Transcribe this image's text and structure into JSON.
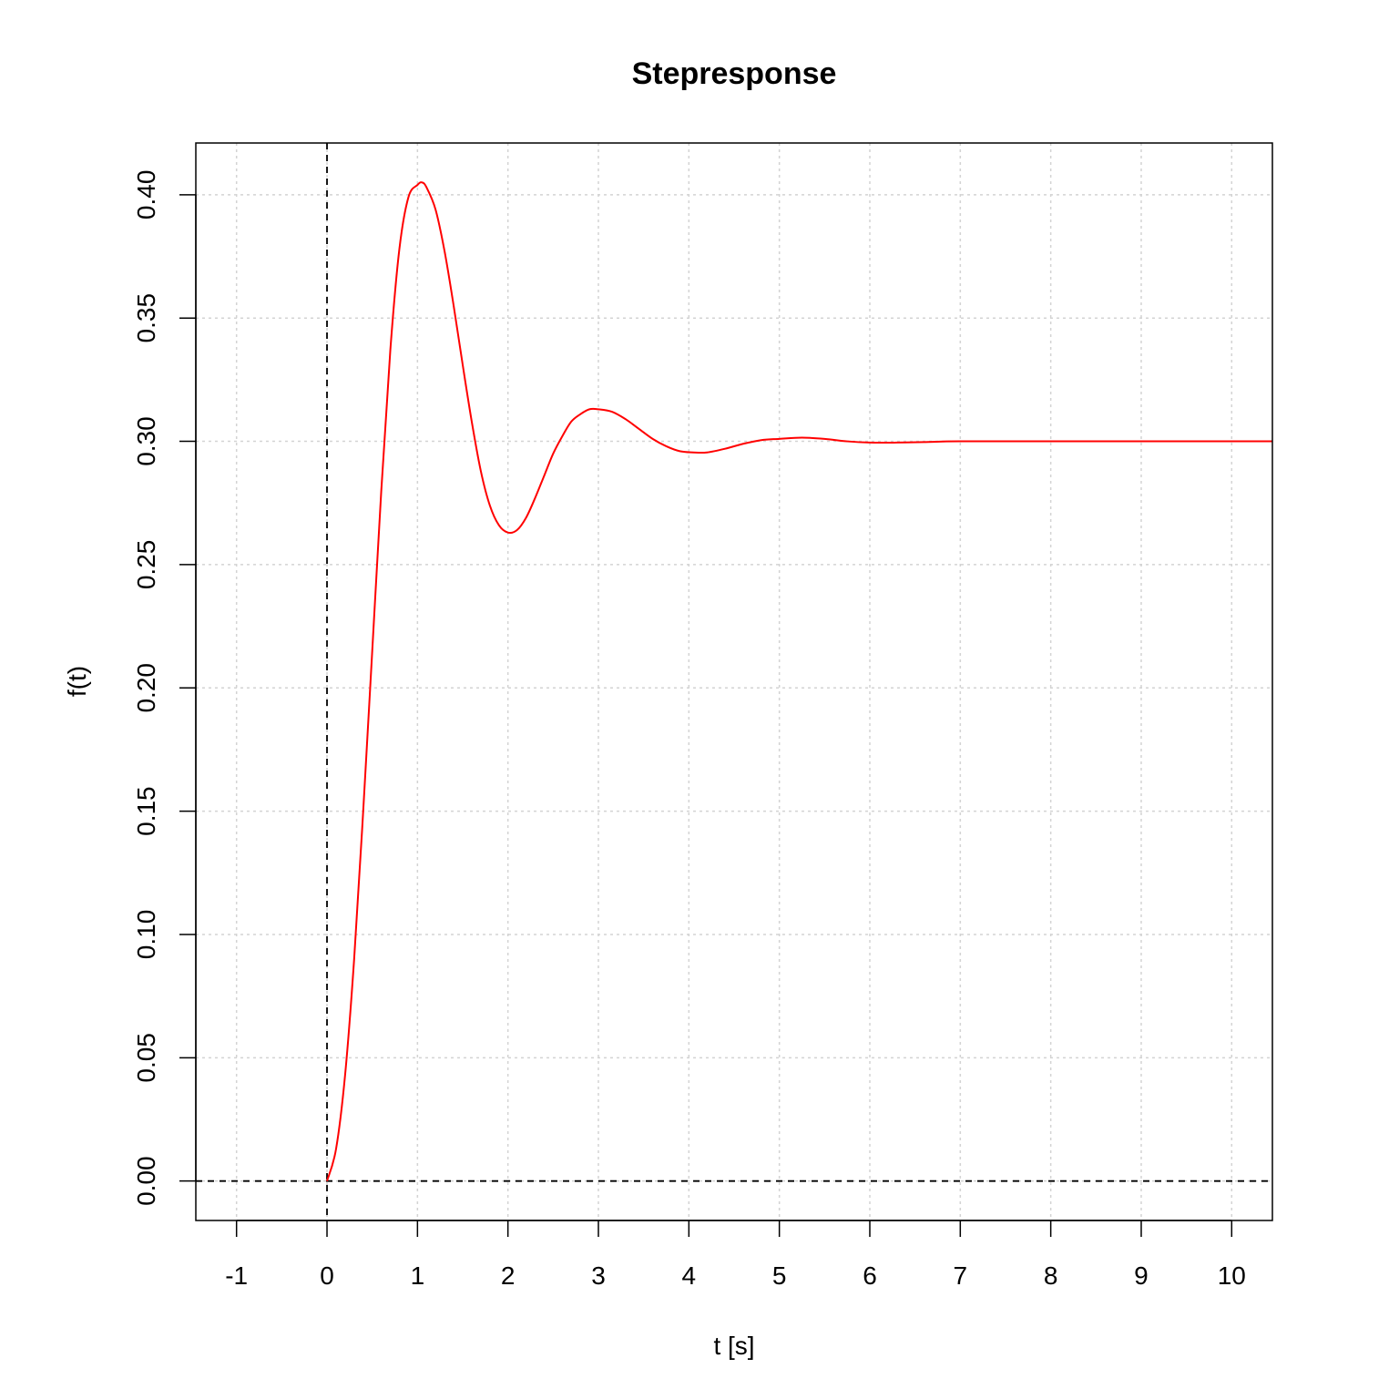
{
  "chart_data": {
    "type": "line",
    "title": "Stepresponse",
    "xlabel": "t [s]",
    "ylabel": "f(t)",
    "xlim": [
      -1.45,
      10.45
    ],
    "ylim": [
      -0.016,
      0.421
    ],
    "x_ticks": [
      "-1",
      "0",
      "1",
      "2",
      "3",
      "4",
      "5",
      "6",
      "7",
      "8",
      "9",
      "10"
    ],
    "y_ticks": [
      "0.00",
      "0.05",
      "0.10",
      "0.15",
      "0.20",
      "0.25",
      "0.30",
      "0.35",
      "0.40"
    ],
    "grid": true,
    "reference_lines": [
      {
        "orientation": "vertical",
        "value": 0,
        "style": "dashed",
        "color": "#000000"
      },
      {
        "orientation": "horizontal",
        "value": 0,
        "style": "dashed",
        "color": "#000000"
      }
    ],
    "series": [
      {
        "color": "#ff0000",
        "x": [
          0,
          0.1,
          0.2,
          0.3,
          0.4,
          0.5,
          0.6,
          0.7,
          0.8,
          0.9,
          1.0,
          1.05,
          1.1,
          1.2,
          1.3,
          1.4,
          1.5,
          1.6,
          1.7,
          1.8,
          1.9,
          2.0,
          2.1,
          2.2,
          2.3,
          2.4,
          2.5,
          2.6,
          2.7,
          2.8,
          2.9,
          3.0,
          3.15,
          3.3,
          3.45,
          3.6,
          3.75,
          3.9,
          4.05,
          4.2,
          4.4,
          4.6,
          4.8,
          5.0,
          5.25,
          5.5,
          5.75,
          6.0,
          6.3,
          6.6,
          7.0,
          8.0,
          9.0,
          10.45
        ],
        "y": [
          0.0,
          0.013,
          0.043,
          0.09,
          0.15,
          0.215,
          0.28,
          0.337,
          0.378,
          0.399,
          0.404,
          0.405,
          0.403,
          0.394,
          0.377,
          0.355,
          0.331,
          0.308,
          0.288,
          0.274,
          0.266,
          0.263,
          0.264,
          0.269,
          0.277,
          0.286,
          0.295,
          0.302,
          0.308,
          0.311,
          0.313,
          0.313,
          0.312,
          0.309,
          0.305,
          0.301,
          0.298,
          0.296,
          0.2955,
          0.2955,
          0.297,
          0.299,
          0.3005,
          0.301,
          0.3015,
          0.301,
          0.3,
          0.2995,
          0.2995,
          0.2997,
          0.3,
          0.3,
          0.3,
          0.3
        ]
      }
    ]
  }
}
